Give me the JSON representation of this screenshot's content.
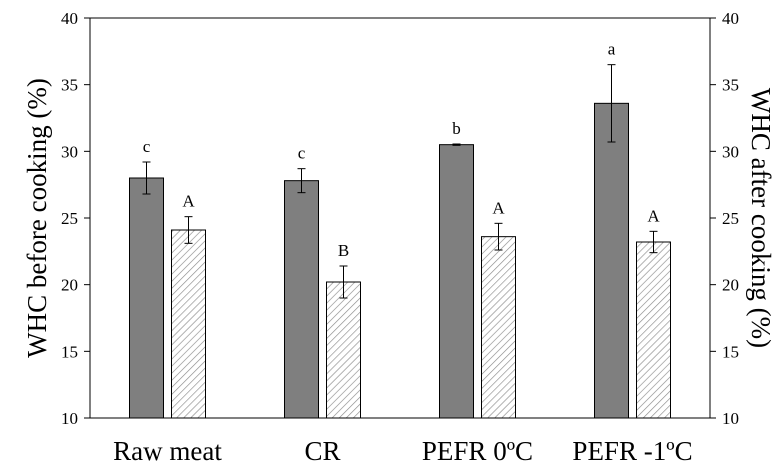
{
  "chart_data": {
    "type": "bar",
    "categories": [
      "Raw meat",
      "CR",
      "PEFR  0ºC",
      "PEFR -1ºC"
    ],
    "series": [
      {
        "axis": "left",
        "color": "#7f7f7f",
        "pattern": "solid",
        "values": [
          28.0,
          27.8,
          30.5,
          33.6
        ],
        "errors": [
          1.2,
          0.9,
          0.05,
          2.9
        ],
        "letters": [
          "c",
          "c",
          "b",
          "a"
        ]
      },
      {
        "axis": "right",
        "color": "#ffffff",
        "pattern": "hatched",
        "values": [
          24.1,
          20.2,
          23.6,
          23.2
        ],
        "errors": [
          1.0,
          1.2,
          1.0,
          0.8
        ],
        "letters": [
          "A",
          "B",
          "A",
          "A"
        ]
      }
    ],
    "ylabel": "WHC before cooking (%)",
    "ylabel_right": "WHC after cooking (%)",
    "ylim": [
      10,
      40
    ],
    "yticks": [
      "10",
      "15",
      "20",
      "25",
      "30",
      "35",
      "40"
    ],
    "grid": false,
    "legend": "none"
  }
}
